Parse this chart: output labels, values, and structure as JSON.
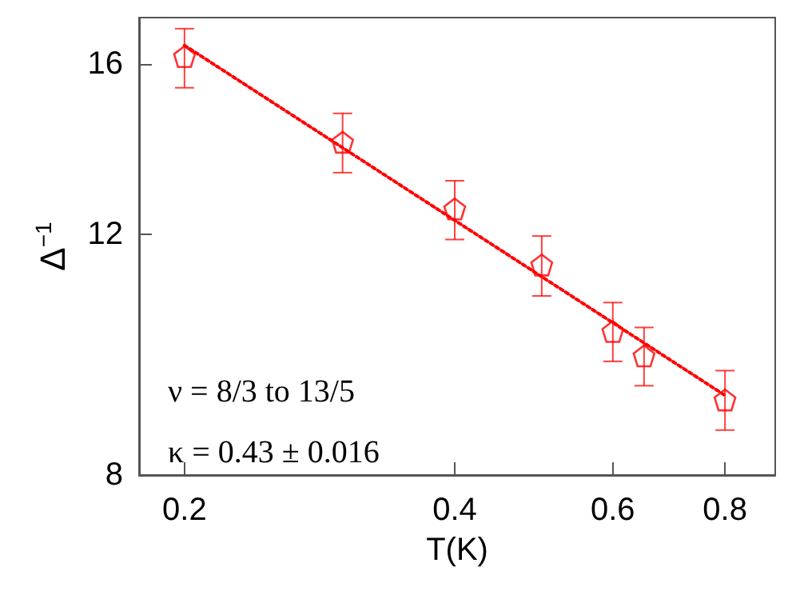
{
  "chart_data": {
    "type": "scatter",
    "xlabel": "T(K)",
    "ylabel": "Δ$^{−1}$",
    "log": "xy",
    "xlim": [
      0.178,
      0.91
    ],
    "ylim": [
      8,
      17.3
    ],
    "xticks": [
      0.2,
      0.4,
      0.6,
      0.8
    ],
    "yticks": [
      8,
      12,
      16
    ],
    "grid": false,
    "series": [
      {
        "color": "#ff0000",
        "x": [
          0.2,
          0.3,
          0.4,
          0.5,
          0.6,
          0.65,
          0.8
        ],
        "values": [
          16.2,
          14.02,
          12.53,
          11.4,
          10.19,
          9.78,
          9.08
        ],
        "errors": [
          [
            15.37,
            16.98
          ],
          [
            13.32,
            14.72
          ],
          [
            11.9,
            13.14
          ],
          [
            10.82,
            11.97
          ],
          [
            9.69,
            10.7
          ],
          [
            9.3,
            10.26
          ],
          [
            8.63,
            9.54
          ]
        ]
      },
      {
        "type": "line",
        "color": "#ff0000",
        "line_style": "dotted",
        "marker": "none",
        "x": [
          0.2,
          0.8
        ],
        "values": [
          16.51,
          9.15
        ]
      }
    ],
    "annotations": [
      "ν = 8/3 to 13/5",
      "κ = 0.43 ± 0.016"
    ]
  }
}
